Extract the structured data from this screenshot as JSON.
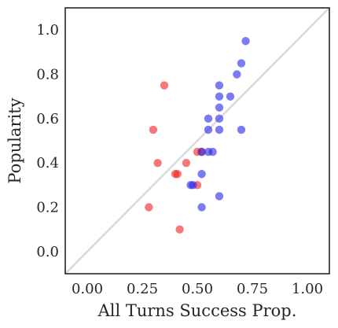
{
  "chart_data": {
    "type": "scatter",
    "title": "",
    "xlabel": "All Turns Success Prop.",
    "ylabel": "Popularity",
    "xlim": [
      -0.1,
      1.1
    ],
    "ylim": [
      -0.1,
      1.1
    ],
    "xticks": [
      0.0,
      0.25,
      0.5,
      0.75,
      1.0
    ],
    "xtick_labels": [
      "0.00",
      "0.25",
      "0.50",
      "0.75",
      "1.00"
    ],
    "yticks": [
      0.0,
      0.2,
      0.4,
      0.6,
      0.8,
      1.0
    ],
    "ytick_labels": [
      "0.0",
      "0.2",
      "0.4",
      "0.6",
      "0.8",
      "1.0"
    ],
    "grid": false,
    "reference_line": {
      "from": [
        -0.1,
        -0.1
      ],
      "to": [
        1.1,
        1.1
      ],
      "color": "#d9d9d9"
    },
    "series": [
      {
        "color": "#ef2020",
        "points": [
          [
            0.35,
            0.75
          ],
          [
            0.3,
            0.55
          ],
          [
            0.32,
            0.4
          ],
          [
            0.4,
            0.35
          ],
          [
            0.41,
            0.35
          ],
          [
            0.45,
            0.4
          ],
          [
            0.5,
            0.3
          ],
          [
            0.28,
            0.2
          ],
          [
            0.42,
            0.1
          ],
          [
            0.5,
            0.45
          ],
          [
            0.52,
            0.45
          ]
        ]
      },
      {
        "color": "#2424e8",
        "points": [
          [
            0.72,
            0.95
          ],
          [
            0.7,
            0.85
          ],
          [
            0.68,
            0.8
          ],
          [
            0.6,
            0.75
          ],
          [
            0.6,
            0.7
          ],
          [
            0.65,
            0.7
          ],
          [
            0.6,
            0.65
          ],
          [
            0.55,
            0.6
          ],
          [
            0.6,
            0.6
          ],
          [
            0.55,
            0.55
          ],
          [
            0.6,
            0.55
          ],
          [
            0.7,
            0.55
          ],
          [
            0.52,
            0.45
          ],
          [
            0.55,
            0.45
          ],
          [
            0.57,
            0.45
          ],
          [
            0.52,
            0.35
          ],
          [
            0.47,
            0.3
          ],
          [
            0.48,
            0.3
          ],
          [
            0.6,
            0.25
          ],
          [
            0.52,
            0.2
          ]
        ]
      }
    ]
  }
}
